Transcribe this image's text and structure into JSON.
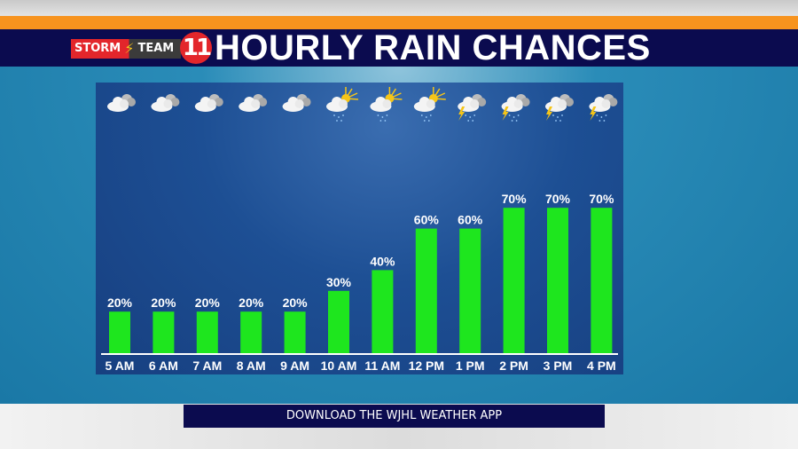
{
  "header": {
    "brand_storm": "STORM",
    "brand_team": "TEAM",
    "brand_number": "11",
    "title": "HOURLY RAIN CHANCES"
  },
  "footer": {
    "banner": "DOWNLOAD THE WJHL WEATHER APP"
  },
  "colors": {
    "bar": "#1ee61e",
    "header_navy": "#0b0b4f",
    "accent_orange": "#f7931e",
    "brand_red": "#e3262b"
  },
  "chart_data": {
    "type": "bar",
    "title": "HOURLY RAIN CHANCES",
    "categories": [
      "5 AM",
      "6 AM",
      "7 AM",
      "8 AM",
      "9 AM",
      "10 AM",
      "11 AM",
      "12 PM",
      "1 PM",
      "2 PM",
      "3 PM",
      "4 PM"
    ],
    "values": [
      20,
      20,
      20,
      20,
      20,
      30,
      40,
      60,
      60,
      70,
      70,
      70
    ],
    "data_labels": [
      "20%",
      "20%",
      "20%",
      "20%",
      "20%",
      "30%",
      "40%",
      "60%",
      "60%",
      "70%",
      "70%",
      "70%"
    ],
    "icons": [
      "cloudy-icon",
      "cloudy-icon",
      "cloudy-icon",
      "cloudy-icon",
      "cloudy-icon",
      "partly-sunny-rain-icon",
      "partly-sunny-rain-icon",
      "partly-sunny-rain-icon",
      "thunderstorm-icon",
      "thunderstorm-icon",
      "thunderstorm-icon",
      "thunderstorm-icon"
    ],
    "ylim": [
      0,
      100
    ],
    "grid": false
  }
}
